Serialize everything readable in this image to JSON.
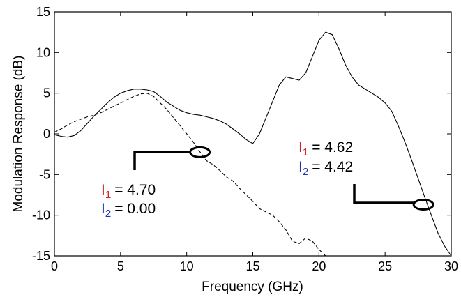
{
  "chart_data": {
    "type": "line",
    "title": "",
    "xlabel": "Frequency (GHz)",
    "ylabel": "Modulation Response (dB)",
    "xlim": [
      0,
      30
    ],
    "ylim": [
      -15,
      15
    ],
    "x_ticks": [
      0,
      5,
      10,
      15,
      20,
      25,
      30
    ],
    "y_ticks": [
      -15,
      -10,
      -5,
      0,
      5,
      10,
      15
    ],
    "grid": false,
    "series": [
      {
        "style": "solid",
        "x": [
          0,
          0.5,
          1,
          1.5,
          2,
          2.5,
          3,
          3.5,
          4,
          4.5,
          5,
          5.5,
          6,
          6.5,
          7,
          7.5,
          8,
          8.5,
          9,
          9.5,
          10,
          10.5,
          11,
          11.5,
          12,
          12.5,
          13,
          13.5,
          14,
          14.5,
          15,
          15.5,
          16,
          16.5,
          17,
          17.5,
          18,
          18.5,
          19,
          19.5,
          20,
          20.5,
          21,
          21.5,
          22,
          22.5,
          23,
          23.5,
          24,
          24.5,
          25,
          25.5,
          26,
          26.5,
          27,
          27.5,
          28,
          28.5,
          29,
          29.5,
          30
        ],
        "y": [
          -0.1,
          -0.3,
          -0.4,
          -0.2,
          0.4,
          1.3,
          2.2,
          3.0,
          3.8,
          4.5,
          5.0,
          5.3,
          5.5,
          5.5,
          5.4,
          5.2,
          4.6,
          3.9,
          3.4,
          2.9,
          2.6,
          2.4,
          2.3,
          2.1,
          1.9,
          1.6,
          1.2,
          0.6,
          0.0,
          -0.7,
          -1.2,
          0.0,
          2.0,
          4.0,
          6.0,
          7.0,
          6.8,
          6.6,
          7.5,
          9.5,
          11.5,
          12.5,
          12.2,
          10.5,
          8.5,
          7.0,
          6.0,
          5.5,
          5.0,
          4.5,
          3.8,
          2.8,
          1.0,
          -1.0,
          -3.2,
          -5.5,
          -7.8,
          -10.0,
          -12.2,
          -13.8,
          -15.0
        ]
      },
      {
        "style": "dashed",
        "x": [
          0,
          0.5,
          1,
          1.5,
          2,
          2.5,
          3,
          3.5,
          4,
          4.5,
          5,
          5.5,
          6,
          6.5,
          7,
          7.5,
          8,
          8.5,
          9,
          9.5,
          10,
          10.5,
          11,
          11.5,
          12,
          12.5,
          13,
          13.5,
          14,
          14.5,
          15,
          15.5,
          16,
          16.5,
          17,
          17.5,
          18,
          18.5,
          19,
          19.5,
          20,
          20.5
        ],
        "y": [
          0.2,
          0.6,
          1.1,
          1.5,
          1.8,
          2.1,
          2.3,
          2.6,
          3.0,
          3.4,
          3.8,
          4.2,
          4.6,
          4.9,
          5.0,
          4.6,
          3.8,
          3.0,
          2.0,
          1.0,
          0.0,
          -1.0,
          -2.2,
          -3.3,
          -3.8,
          -4.5,
          -5.3,
          -5.8,
          -6.7,
          -7.5,
          -8.3,
          -9.2,
          -9.6,
          -10.0,
          -10.8,
          -11.8,
          -13.2,
          -13.5,
          -12.8,
          -13.2,
          -14.2,
          -15.0
        ]
      }
    ],
    "annotations": [
      {
        "lines": [
          {
            "symbol": "I",
            "sub": "1",
            "value": "= 4.70",
            "symbol_color": "#cc2222"
          },
          {
            "symbol": "I",
            "sub": "2",
            "value": "= 0.00",
            "symbol_color": "#2233bb"
          }
        ],
        "marker_target": [
          11.0,
          -2.6
        ]
      },
      {
        "lines": [
          {
            "symbol": "I",
            "sub": "1",
            "value": "= 4.62",
            "symbol_color": "#cc2222"
          },
          {
            "symbol": "I",
            "sub": "2",
            "value": "= 4.42",
            "symbol_color": "#2233bb"
          }
        ],
        "marker_target": [
          27.9,
          -8.7
        ]
      }
    ]
  }
}
